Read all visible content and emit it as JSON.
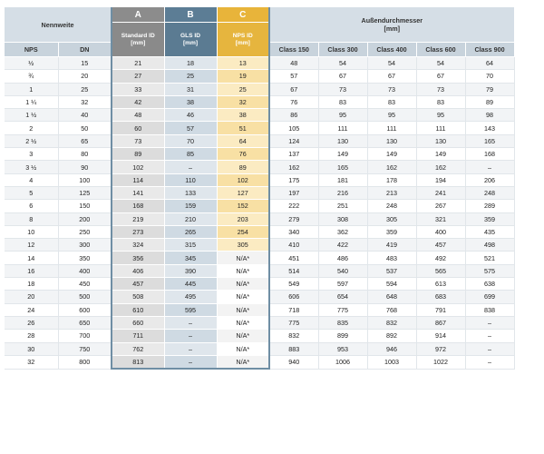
{
  "header": {
    "nennweite": "Nennweite",
    "nps": "NPS",
    "dn": "DN",
    "a_letter": "A",
    "a_name_1": "Standard ID",
    "a_name_2": "[mm]",
    "b_letter": "B",
    "b_name_1": "GLS ID",
    "b_name_2": "[mm]",
    "c_letter": "C",
    "c_name_1": "NPS ID",
    "c_name_2": "[mm]",
    "od_title": "Außendurchmesser",
    "od_unit": "[mm]",
    "classes": [
      "Class 150",
      "Class 300",
      "Class 400",
      "Class 600",
      "Class 900"
    ]
  },
  "colors": {
    "a": "#8c8c8c",
    "b": "#5c7d95",
    "c": "#e8b43a"
  },
  "rows": [
    [
      "½",
      "15",
      "21",
      "18",
      "13",
      "48",
      "54",
      "54",
      "54",
      "64"
    ],
    [
      "¾",
      "20",
      "27",
      "25",
      "19",
      "57",
      "67",
      "67",
      "67",
      "70"
    ],
    [
      "1",
      "25",
      "33",
      "31",
      "25",
      "67",
      "73",
      "73",
      "73",
      "79"
    ],
    [
      "1 ¼",
      "32",
      "42",
      "38",
      "32",
      "76",
      "83",
      "83",
      "83",
      "89"
    ],
    [
      "1 ½",
      "40",
      "48",
      "46",
      "38",
      "86",
      "95",
      "95",
      "95",
      "98"
    ],
    [
      "2",
      "50",
      "60",
      "57",
      "51",
      "105",
      "111",
      "111",
      "111",
      "143"
    ],
    [
      "2 ½",
      "65",
      "73",
      "70",
      "64",
      "124",
      "130",
      "130",
      "130",
      "165"
    ],
    [
      "3",
      "80",
      "89",
      "85",
      "76",
      "137",
      "149",
      "149",
      "149",
      "168"
    ],
    [
      "3 ½",
      "90",
      "102",
      "–",
      "89",
      "162",
      "165",
      "162",
      "162",
      "–"
    ],
    [
      "4",
      "100",
      "114",
      "110",
      "102",
      "175",
      "181",
      "178",
      "194",
      "206"
    ],
    [
      "5",
      "125",
      "141",
      "133",
      "127",
      "197",
      "216",
      "213",
      "241",
      "248"
    ],
    [
      "6",
      "150",
      "168",
      "159",
      "152",
      "222",
      "251",
      "248",
      "267",
      "289"
    ],
    [
      "8",
      "200",
      "219",
      "210",
      "203",
      "279",
      "308",
      "305",
      "321",
      "359"
    ],
    [
      "10",
      "250",
      "273",
      "265",
      "254",
      "340",
      "362",
      "359",
      "400",
      "435"
    ],
    [
      "12",
      "300",
      "324",
      "315",
      "305",
      "410",
      "422",
      "419",
      "457",
      "498"
    ],
    [
      "14",
      "350",
      "356",
      "345",
      "N/A*",
      "451",
      "486",
      "483",
      "492",
      "521"
    ],
    [
      "16",
      "400",
      "406",
      "390",
      "N/A*",
      "514",
      "540",
      "537",
      "565",
      "575"
    ],
    [
      "18",
      "450",
      "457",
      "445",
      "N/A*",
      "549",
      "597",
      "594",
      "613",
      "638"
    ],
    [
      "20",
      "500",
      "508",
      "495",
      "N/A*",
      "606",
      "654",
      "648",
      "683",
      "699"
    ],
    [
      "24",
      "600",
      "610",
      "595",
      "N/A*",
      "718",
      "775",
      "768",
      "791",
      "838"
    ],
    [
      "26",
      "650",
      "660",
      "–",
      "N/A*",
      "775",
      "835",
      "832",
      "867",
      "–"
    ],
    [
      "28",
      "700",
      "711",
      "–",
      "N/A*",
      "832",
      "899",
      "892",
      "914",
      "–"
    ],
    [
      "30",
      "750",
      "762",
      "–",
      "N/A*",
      "883",
      "953",
      "946",
      "972",
      "–"
    ],
    [
      "32",
      "800",
      "813",
      "–",
      "N/A*",
      "940",
      "1006",
      "1003",
      "1022",
      "–"
    ]
  ]
}
